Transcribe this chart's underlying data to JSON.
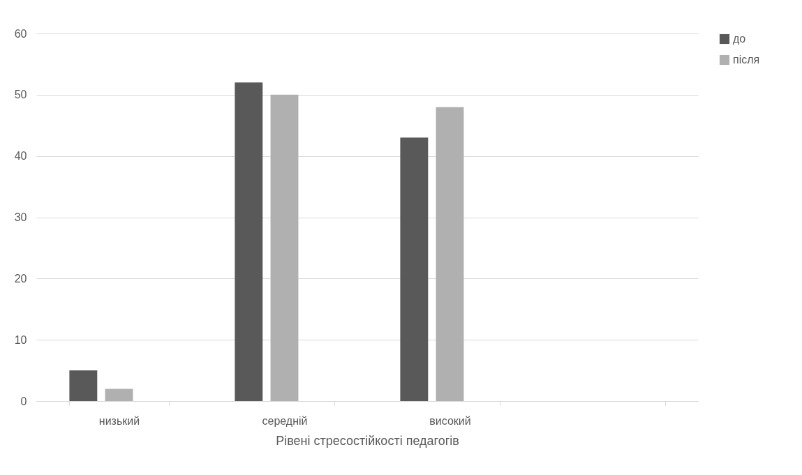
{
  "chart_data": {
    "type": "bar",
    "xlabel": "Рівені стресостійкості педагогів",
    "categories": [
      "низький",
      "середній",
      "високий",
      null
    ],
    "series": [
      {
        "name": "до",
        "color": "#595959",
        "values": [
          5,
          52,
          43,
          null
        ]
      },
      {
        "name": "після",
        "color": "#b0b0b0",
        "values": [
          2,
          50,
          48,
          null
        ]
      }
    ],
    "ylim": [
      0,
      60
    ],
    "yticks": [
      0,
      10,
      20,
      30,
      40,
      50,
      60
    ],
    "grid": "y",
    "legend": "right"
  }
}
